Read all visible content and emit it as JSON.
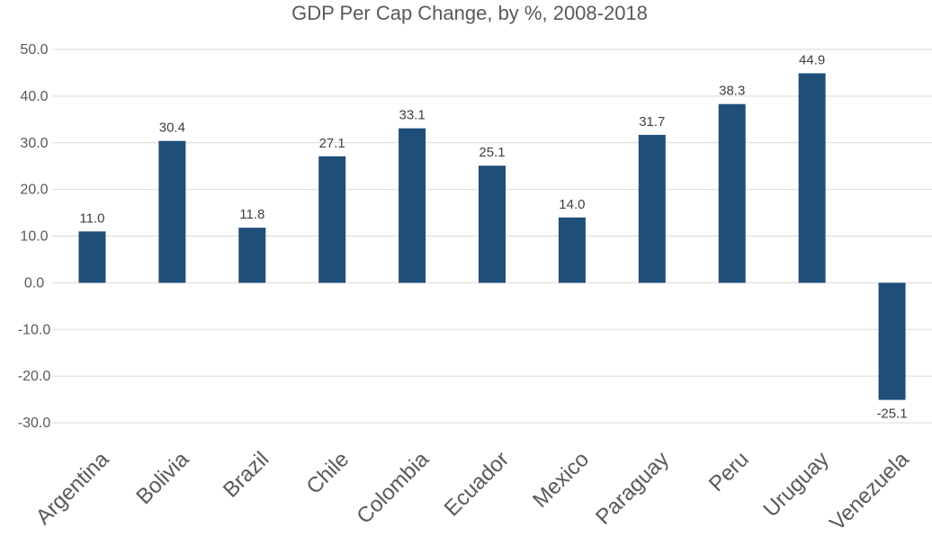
{
  "chart_data": {
    "type": "bar",
    "title": "GDP Per Cap Change, by %, 2008-2018",
    "xlabel": "",
    "ylabel": "",
    "categories": [
      "Argentina",
      "Bolivia",
      "Brazil",
      "Chile",
      "Colombia",
      "Ecuador",
      "Mexico",
      "Paraguay",
      "Peru",
      "Uruguay",
      "Venezuela"
    ],
    "values": [
      11.0,
      30.4,
      11.8,
      27.1,
      33.1,
      25.1,
      14.0,
      31.7,
      38.3,
      44.9,
      -25.1
    ],
    "data_labels": [
      "11.0",
      "30.4",
      "11.8",
      "27.1",
      "33.1",
      "25.1",
      "14.0",
      "31.7",
      "38.3",
      "44.9",
      "-25.1"
    ],
    "ylim": [
      -30,
      50
    ],
    "yticks": [
      50,
      40,
      30,
      20,
      10,
      0,
      -10,
      -20,
      -30
    ],
    "ytick_labels": [
      "50.0",
      "40.0",
      "30.0",
      "20.0",
      "10.0",
      "0.0",
      "-10.0",
      "-20.0",
      "-30.0"
    ],
    "grid": true,
    "legend": "none",
    "colors": {
      "bar": "#1f4e79"
    }
  }
}
